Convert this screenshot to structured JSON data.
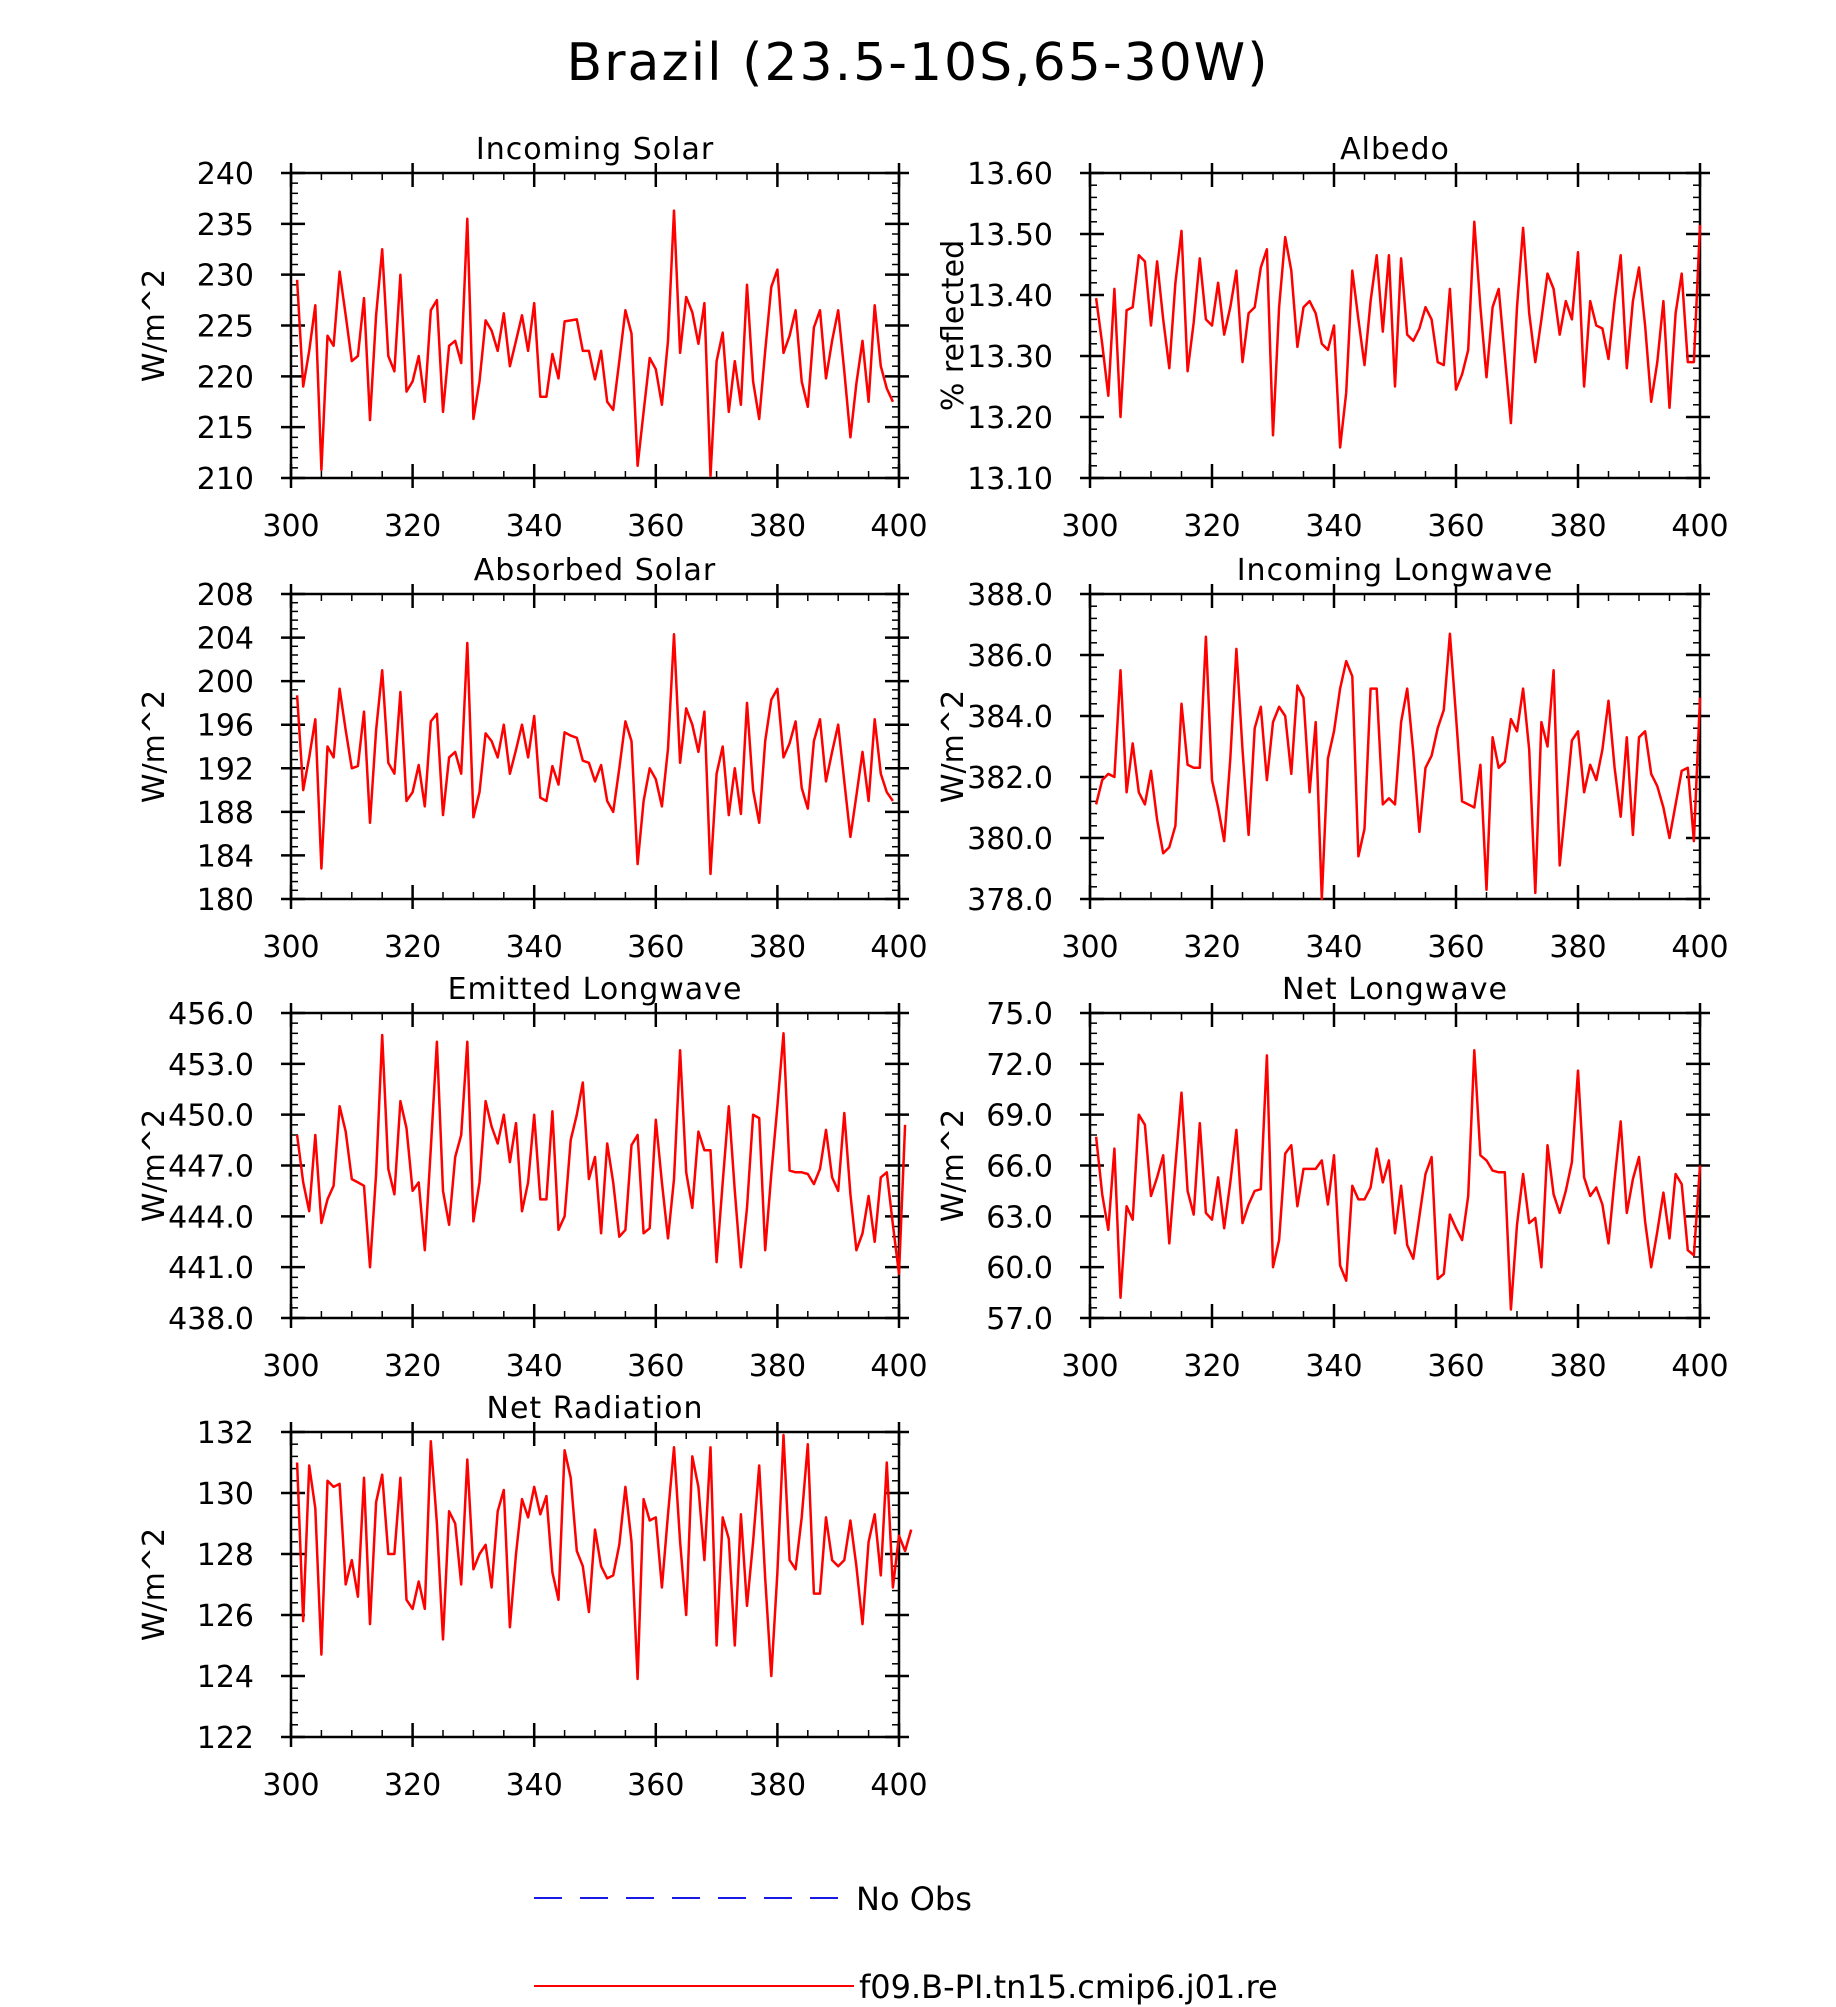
{
  "figure": {
    "title": "Brazil (23.5-10S,65-30W)",
    "legend": [
      {
        "label": "No Obs",
        "color": "#1a1ae6",
        "dash": true
      },
      {
        "label": "f09.B-PI.tn15.cmip6.j01.re",
        "color": "#ff0000",
        "dash": false
      }
    ]
  },
  "chart_data": [
    {
      "type": "line",
      "title": "Incoming Solar",
      "xlabel": "",
      "ylabel": "W/m^2",
      "xlim": [
        300,
        400
      ],
      "ylim": [
        210,
        240
      ],
      "yticks": [
        210,
        215,
        220,
        225,
        230,
        235,
        240
      ],
      "ytick_labels": [
        "210",
        "215",
        "220",
        "225",
        "230",
        "235",
        "240"
      ],
      "xticks": [
        300,
        320,
        340,
        360,
        380,
        400
      ],
      "series": [
        {
          "color": "#ff0000",
          "x_start": 301,
          "values": [
            229.5,
            219,
            222.5,
            227,
            210.8,
            224,
            223,
            230.3,
            226,
            221.5,
            222,
            227.7,
            215.7,
            226,
            232.5,
            222,
            220.5,
            230,
            218.5,
            219.5,
            222,
            217.5,
            226.5,
            227.5,
            216.5,
            223,
            223.5,
            221.3,
            235.5,
            215.8,
            219.5,
            225.5,
            224.5,
            222.5,
            226.2,
            221,
            223.5,
            226,
            222.5,
            227.2,
            218,
            218,
            222.2,
            219.8,
            225.4,
            225.5,
            225.6,
            222.5,
            222.5,
            219.7,
            222.5,
            217.5,
            216.7,
            221.5,
            226.5,
            224.2,
            211.2,
            216.5,
            221.8,
            220.7,
            217.2,
            223.5,
            236.3,
            222.3,
            227.8,
            226.3,
            223.2,
            227.2,
            210.2,
            221.5,
            224.3,
            216.5,
            221.5,
            217.2,
            229,
            219.5,
            215.8,
            222.5,
            228.8,
            230.5,
            222.3,
            224,
            226.5,
            219.5,
            217,
            224.8,
            226.5,
            219.8,
            223.5,
            226.5,
            220.5,
            214,
            219.3,
            223.5,
            217.5,
            227,
            221,
            218.8,
            217.5
          ]
        }
      ]
    },
    {
      "type": "line",
      "title": "Albedo",
      "xlabel": "",
      "ylabel": "% reflected",
      "xlim": [
        300,
        400
      ],
      "ylim": [
        13.1,
        13.6
      ],
      "yticks": [
        13.1,
        13.2,
        13.3,
        13.4,
        13.5,
        13.6
      ],
      "ytick_labels": [
        "13.10",
        "13.20",
        "13.30",
        "13.40",
        "13.50",
        "13.60"
      ],
      "xticks": [
        300,
        320,
        340,
        360,
        380,
        400
      ],
      "series": [
        {
          "color": "#ff0000",
          "x_start": 301,
          "values": [
            13.395,
            13.32,
            13.235,
            13.41,
            13.2,
            13.375,
            13.38,
            13.465,
            13.455,
            13.35,
            13.455,
            13.36,
            13.28,
            13.42,
            13.505,
            13.275,
            13.355,
            13.46,
            13.36,
            13.35,
            13.42,
            13.335,
            13.38,
            13.44,
            13.29,
            13.37,
            13.38,
            13.445,
            13.475,
            13.17,
            13.38,
            13.495,
            13.44,
            13.315,
            13.38,
            13.39,
            13.37,
            13.32,
            13.31,
            13.35,
            13.15,
            13.24,
            13.44,
            13.36,
            13.285,
            13.39,
            13.465,
            13.34,
            13.465,
            13.25,
            13.46,
            13.335,
            13.325,
            13.345,
            13.38,
            13.36,
            13.29,
            13.285,
            13.41,
            13.245,
            13.27,
            13.31,
            13.52,
            13.38,
            13.265,
            13.38,
            13.41,
            13.3,
            13.19,
            13.38,
            13.51,
            13.37,
            13.29,
            13.36,
            13.435,
            13.41,
            13.335,
            13.39,
            13.36,
            13.47,
            13.25,
            13.39,
            13.35,
            13.345,
            13.295,
            13.39,
            13.465,
            13.28,
            13.39,
            13.445,
            13.35,
            13.225,
            13.29,
            13.39,
            13.215,
            13.37,
            13.435,
            13.29,
            13.29,
            13.515
          ]
        }
      ]
    },
    {
      "type": "line",
      "title": "Absorbed Solar",
      "xlabel": "",
      "ylabel": "W/m^2",
      "xlim": [
        300,
        400
      ],
      "ylim": [
        180,
        208
      ],
      "yticks": [
        180,
        184,
        188,
        192,
        196,
        200,
        204,
        208
      ],
      "ytick_labels": [
        "180",
        "184",
        "188",
        "192",
        "196",
        "200",
        "204",
        "208"
      ],
      "xticks": [
        300,
        320,
        340,
        360,
        380,
        400
      ],
      "series": [
        {
          "color": "#ff0000",
          "x_start": 301,
          "values": [
            198.7,
            190,
            193,
            196.5,
            182.8,
            194,
            193,
            199.3,
            195.5,
            192,
            192.2,
            197.2,
            187,
            195.5,
            201,
            192.5,
            191.5,
            199,
            189,
            189.8,
            192.3,
            188.5,
            196.3,
            197,
            187.7,
            193,
            193.5,
            191.5,
            203.5,
            187.5,
            189.8,
            195.2,
            194.5,
            193,
            196,
            191.5,
            193.7,
            196,
            193,
            196.8,
            189.3,
            189,
            192.2,
            190.5,
            195.3,
            195,
            194.8,
            192.7,
            192.5,
            190.8,
            192.3,
            189,
            188,
            192,
            196.3,
            194.5,
            183.2,
            189,
            192,
            191,
            188.5,
            193.8,
            204.3,
            192.5,
            197.5,
            196,
            193.5,
            197.2,
            182.3,
            191.5,
            194,
            187.7,
            192,
            187.8,
            198,
            190,
            187,
            194.5,
            198.3,
            199.3,
            193,
            194.3,
            196.3,
            190.2,
            188.3,
            194.5,
            196.5,
            190.8,
            193.5,
            196,
            190.8,
            185.7,
            189.5,
            193.5,
            189,
            196.5,
            191.5,
            189.8,
            189
          ]
        }
      ]
    },
    {
      "type": "line",
      "title": "Incoming Longwave",
      "xlabel": "",
      "ylabel": "W/m^2",
      "xlim": [
        300,
        400
      ],
      "ylim": [
        378,
        388
      ],
      "yticks": [
        378,
        380,
        382,
        384,
        386,
        388
      ],
      "ytick_labels": [
        "378.0",
        "380.0",
        "382.0",
        "384.0",
        "386.0",
        "388.0"
      ],
      "xticks": [
        300,
        320,
        340,
        360,
        380,
        400
      ],
      "series": [
        {
          "color": "#ff0000",
          "x_start": 301,
          "values": [
            381.1,
            381.9,
            382.1,
            382,
            385.5,
            381.5,
            383.1,
            381.5,
            381.1,
            382.2,
            380.6,
            379.5,
            379.7,
            380.4,
            384.4,
            382.4,
            382.3,
            382.3,
            386.6,
            381.9,
            381,
            379.9,
            382.6,
            386.2,
            382.9,
            380.1,
            383.6,
            384.3,
            381.9,
            383.8,
            384.3,
            384,
            382.1,
            385,
            384.6,
            381.5,
            383.8,
            378,
            382.6,
            383.5,
            384.9,
            385.8,
            385.3,
            379.4,
            380.3,
            384.9,
            384.9,
            381.1,
            381.3,
            381.1,
            383.8,
            384.9,
            382.8,
            380.2,
            382.3,
            382.7,
            383.6,
            384.2,
            386.7,
            384,
            381.2,
            381.1,
            381,
            382.4,
            378.3,
            383.3,
            382.3,
            382.5,
            383.9,
            383.5,
            384.9,
            382.9,
            378.2,
            383.8,
            383,
            385.5,
            379.1,
            381.1,
            383.2,
            383.5,
            381.5,
            382.4,
            381.9,
            382.9,
            384.5,
            382.3,
            380.7,
            383.3,
            380.1,
            383.3,
            383.5,
            382.1,
            381.7,
            381,
            380,
            381.1,
            382.2,
            382.3,
            379.9,
            384.6
          ]
        }
      ]
    },
    {
      "type": "line",
      "title": "Emitted Longwave",
      "xlabel": "",
      "ylabel": "W/m^2",
      "xlim": [
        300,
        400
      ],
      "ylim": [
        438,
        456
      ],
      "yticks": [
        438,
        441,
        444,
        447,
        450,
        453,
        456
      ],
      "ytick_labels": [
        "438.0",
        "441.0",
        "444.0",
        "447.0",
        "450.0",
        "453.0",
        "456.0"
      ],
      "xticks": [
        300,
        320,
        340,
        360,
        380,
        400
      ],
      "series": [
        {
          "color": "#ff0000",
          "x_start": 301,
          "values": [
            448.8,
            446,
            444.3,
            448.8,
            443.6,
            445,
            445.8,
            450.5,
            449,
            446.2,
            446,
            445.8,
            441,
            446.5,
            454.7,
            446.8,
            445.3,
            450.8,
            449.2,
            445.5,
            446,
            442,
            448,
            454.3,
            445.5,
            443.5,
            447.5,
            448.8,
            454.3,
            443.7,
            446,
            450.8,
            449.3,
            448.3,
            450,
            447.2,
            449.5,
            444.3,
            446,
            450,
            445,
            445,
            450.2,
            443.2,
            444,
            448.5,
            450,
            451.9,
            446.2,
            447.5,
            443,
            448.3,
            446,
            442.8,
            443.2,
            448.2,
            448.8,
            443,
            443.3,
            449.7,
            446,
            442.7,
            446.2,
            453.8,
            446.6,
            444.5,
            449,
            447.9,
            447.9,
            441.3,
            446,
            450.5,
            445.5,
            441,
            444.5,
            450,
            449.8,
            442,
            446.5,
            450.5,
            454.8,
            446.7,
            446.6,
            446.6,
            446.5,
            445.9,
            446.8,
            449.1,
            446.3,
            445.5,
            450.1,
            445.3,
            442,
            443,
            445.2,
            442.5,
            446.3,
            446.6,
            443.5,
            440.6,
            449.4
          ]
        }
      ]
    },
    {
      "type": "line",
      "title": "Net Longwave",
      "xlabel": "",
      "ylabel": "W/m^2",
      "xlim": [
        300,
        400
      ],
      "ylim": [
        57,
        75
      ],
      "yticks": [
        57,
        60,
        63,
        66,
        69,
        72,
        75
      ],
      "ytick_labels": [
        "57.0",
        "60.0",
        "63.0",
        "66.0",
        "69.0",
        "72.0",
        "75.0"
      ],
      "xticks": [
        300,
        320,
        340,
        360,
        380,
        400
      ],
      "series": [
        {
          "color": "#ff0000",
          "x_start": 301,
          "values": [
            67.7,
            64.3,
            62.2,
            67,
            58.2,
            63.6,
            62.8,
            69,
            68.4,
            64.2,
            65.3,
            66.6,
            61.4,
            66,
            70.3,
            64.5,
            63.1,
            68.5,
            63.2,
            62.8,
            65.3,
            62.3,
            65,
            68.1,
            62.6,
            63.7,
            64.5,
            64.6,
            72.5,
            60,
            61.6,
            66.7,
            67.2,
            63.6,
            65.8,
            65.8,
            65.8,
            66.3,
            63.7,
            66.6,
            60.1,
            59.2,
            64.8,
            64,
            64,
            64.7,
            67,
            65,
            66.3,
            62,
            64.8,
            61.3,
            60.5,
            63,
            65.5,
            66.5,
            59.3,
            59.6,
            63.1,
            62.3,
            61.6,
            64.2,
            72.8,
            66.6,
            66.3,
            65.7,
            65.6,
            65.6,
            57.5,
            62.5,
            65.5,
            62.6,
            62.9,
            60,
            67.2,
            64.3,
            63.2,
            64.5,
            66.2,
            71.6,
            65.3,
            64.2,
            64.7,
            63.7,
            61.4,
            65.2,
            68.6,
            63.2,
            65.2,
            66.5,
            62.7,
            60,
            62.1,
            64.4,
            61.7,
            65.5,
            64.9,
            61,
            60.7,
            66
          ]
        }
      ]
    },
    {
      "type": "line",
      "title": "Net Radiation",
      "xlabel": "",
      "ylabel": "W/m^2",
      "xlim": [
        300,
        400
      ],
      "ylim": [
        122,
        132
      ],
      "yticks": [
        122,
        124,
        126,
        128,
        130,
        132
      ],
      "ytick_labels": [
        "122",
        "124",
        "126",
        "128",
        "130",
        "132"
      ],
      "xticks": [
        300,
        320,
        340,
        360,
        380,
        400
      ],
      "series": [
        {
          "color": "#ff0000",
          "x_start": 301,
          "values": [
            131,
            125.8,
            130.9,
            129.5,
            124.7,
            130.4,
            130.2,
            130.3,
            127,
            127.8,
            126.6,
            130.5,
            125.7,
            129.7,
            130.6,
            128,
            128,
            130.5,
            126.5,
            126.2,
            127.1,
            126.2,
            131.7,
            129,
            125.2,
            129.4,
            129,
            127,
            131.1,
            127.5,
            128,
            128.3,
            126.9,
            129.4,
            130.1,
            125.6,
            128,
            129.8,
            129.2,
            130.2,
            129.3,
            129.9,
            127.4,
            126.5,
            131.4,
            130.5,
            128.1,
            127.6,
            126.1,
            128.8,
            127.6,
            127.2,
            127.3,
            128.3,
            130.2,
            128.4,
            123.9,
            129.8,
            129.1,
            129.2,
            126.9,
            129.3,
            131.5,
            128.4,
            126,
            131.2,
            130.2,
            127.8,
            131.5,
            125,
            129.2,
            128.5,
            125,
            129.3,
            126.3,
            128.4,
            130.9,
            127.2,
            124,
            127.4,
            131.9,
            127.8,
            127.5,
            129.2,
            131.6,
            126.7,
            126.7,
            129.2,
            127.8,
            127.6,
            127.8,
            129.1,
            127.6,
            125.7,
            128.4,
            129.3,
            127.3,
            131,
            126.9,
            128.6,
            128.1,
            128.8
          ]
        }
      ]
    }
  ]
}
